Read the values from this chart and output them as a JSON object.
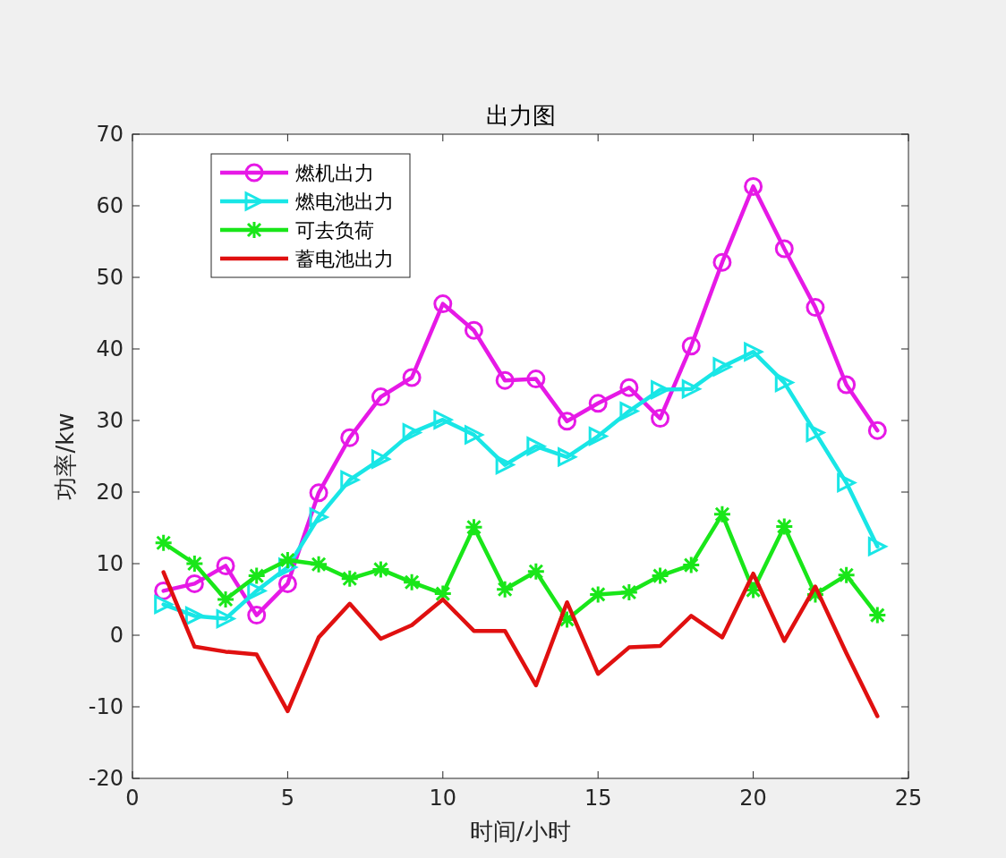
{
  "chart_data": {
    "type": "line",
    "title": "出力图",
    "xlabel": "时间/小时",
    "ylabel": "功率/kw",
    "x": [
      1,
      2,
      3,
      4,
      5,
      6,
      7,
      8,
      9,
      10,
      11,
      12,
      13,
      14,
      15,
      16,
      17,
      18,
      19,
      20,
      21,
      22,
      23,
      24
    ],
    "xlim": [
      0,
      25
    ],
    "xticks": [
      0,
      5,
      10,
      15,
      20,
      25
    ],
    "ylim": [
      -20,
      70
    ],
    "yticks": [
      -20,
      -10,
      0,
      10,
      20,
      30,
      40,
      50,
      60,
      70
    ],
    "grid": false,
    "legend": "top left",
    "series": [
      {
        "name": "燃机出力",
        "color": "#e619e6",
        "marker": "circle",
        "values": [
          6.2,
          7.2,
          9.7,
          2.8,
          7.2,
          19.9,
          27.6,
          33.3,
          36.0,
          46.3,
          42.6,
          35.6,
          35.8,
          29.9,
          32.4,
          34.6,
          30.3,
          40.4,
          52.1,
          62.7,
          54.0,
          45.8,
          35.0,
          28.6
        ]
      },
      {
        "name": "燃电池出力",
        "color": "#19e6e6",
        "marker": "triangle",
        "values": [
          4.3,
          2.7,
          2.3,
          6.2,
          9.5,
          16.5,
          21.7,
          24.6,
          28.3,
          30.1,
          28.0,
          23.8,
          26.4,
          24.9,
          27.8,
          31.3,
          34.3,
          34.4,
          37.5,
          39.6,
          35.3,
          28.3,
          21.3,
          12.4
        ]
      },
      {
        "name": "可去负荷",
        "color": "#19e619",
        "marker": "cross",
        "values": [
          12.9,
          10.0,
          5.0,
          8.3,
          10.5,
          9.9,
          7.9,
          9.2,
          7.4,
          5.8,
          15.1,
          6.4,
          8.9,
          2.2,
          5.7,
          6.0,
          8.3,
          9.8,
          16.9,
          6.3,
          15.2,
          5.7,
          8.4,
          2.8
        ]
      },
      {
        "name": "蓄电池出力",
        "color": "#e01010",
        "marker": "none",
        "values": [
          8.8,
          -1.6,
          -2.3,
          -2.7,
          -10.6,
          -0.3,
          4.4,
          -0.5,
          1.4,
          5.0,
          0.6,
          0.6,
          -7.0,
          4.6,
          -5.4,
          -1.7,
          -1.5,
          2.7,
          -0.3,
          8.6,
          -0.8,
          6.8,
          -2.5,
          -11.3
        ]
      }
    ]
  }
}
